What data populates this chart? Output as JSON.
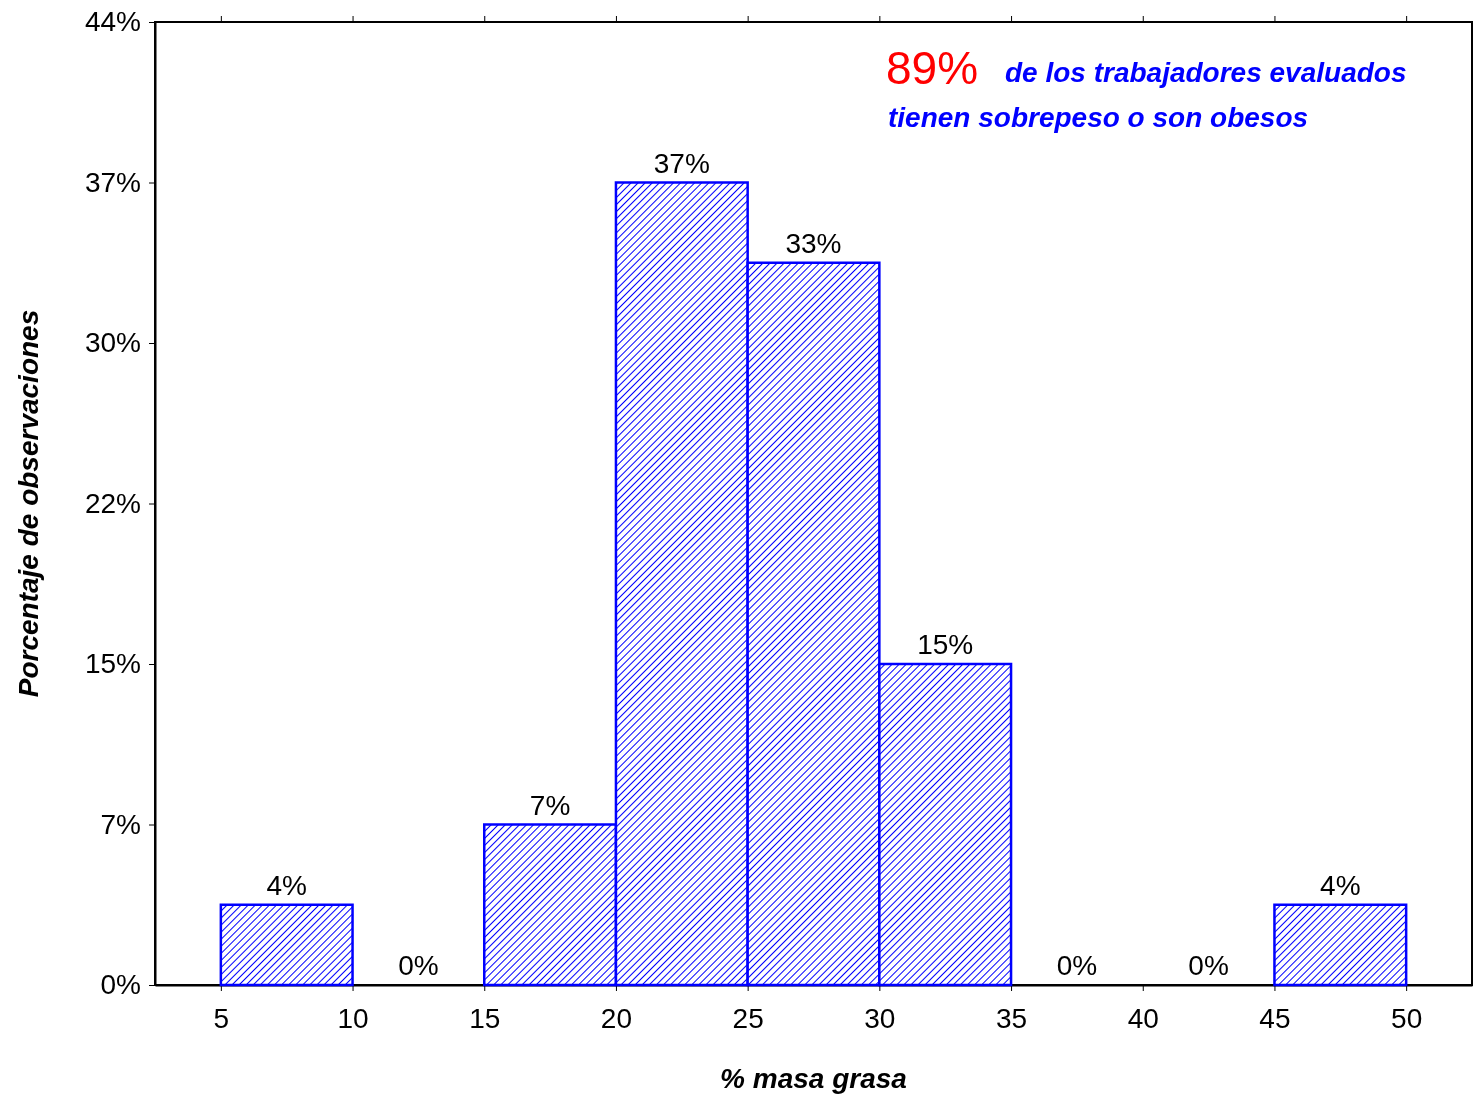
{
  "chart_data": {
    "type": "histogram",
    "xlabel": "% masa grasa",
    "ylabel": "Porcentaje de observaciones",
    "bins": [
      5,
      10,
      15,
      20,
      25,
      30,
      35,
      40,
      45,
      50
    ],
    "values": [
      3.7,
      0,
      7.4,
      37.0,
      33.3,
      14.8,
      0,
      0,
      3.7
    ],
    "value_labels": [
      "4%",
      "0%",
      "7%",
      "37%",
      "33%",
      "15%",
      "0%",
      "0%",
      "4%"
    ],
    "color": "#0000ff",
    "xlim": [
      2.5,
      52.5
    ],
    "xticks": [
      5,
      10,
      15,
      20,
      25,
      30,
      35,
      40,
      45,
      50
    ],
    "ylim": [
      0,
      44.4
    ],
    "yticks": [
      {
        "value": 0,
        "label": "0%"
      },
      {
        "value": 7.4,
        "label": "7%"
      },
      {
        "value": 14.8,
        "label": "15%"
      },
      {
        "value": 22.2,
        "label": "22%"
      },
      {
        "value": 29.6,
        "label": "30%"
      },
      {
        "value": 37.0,
        "label": "37%"
      },
      {
        "value": 44.4,
        "label": "44%"
      }
    ],
    "annotations": [
      "89%",
      "de los trabajadores evaluados",
      "tienen sobrepeso o son obesos"
    ],
    "grid": false
  }
}
